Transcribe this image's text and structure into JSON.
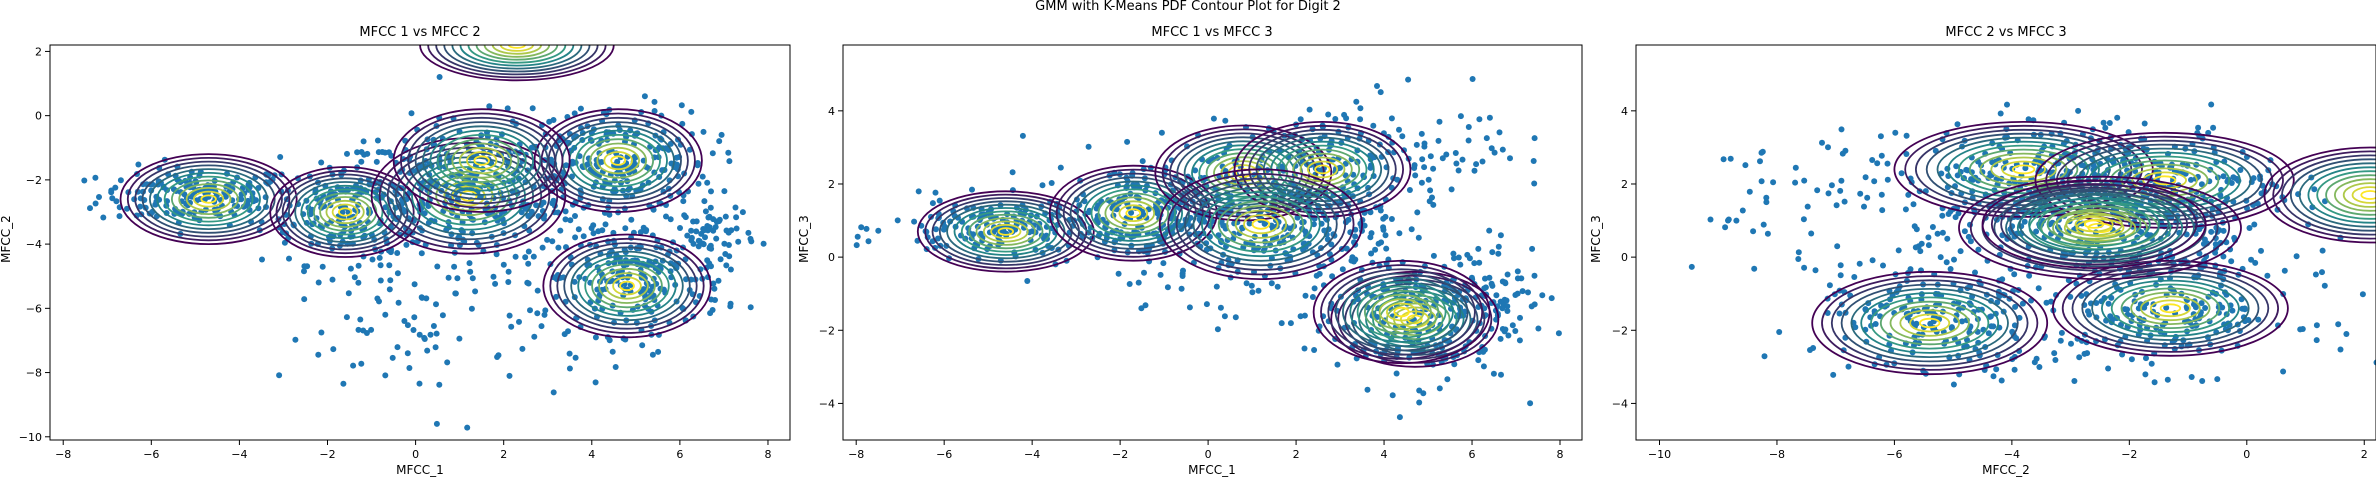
{
  "suptitle": "GMM with K-Means PDF Contour Plot for Digit 2",
  "colors": {
    "points": "#1f77b4",
    "contour_low": "#440154",
    "contour_mid": "#21918c",
    "contour_high": "#fde725",
    "axes": "#000000"
  },
  "chart_data": [
    {
      "type": "scatter",
      "title": "MFCC 1 vs MFCC 2",
      "xlabel": "MFCC_1",
      "ylabel": "MFCC_2",
      "xlim": [
        -8.3,
        8.5
      ],
      "ylim": [
        -10.1,
        2.2
      ],
      "xticks": [
        -8,
        -6,
        -4,
        -2,
        0,
        2,
        4,
        6,
        8
      ],
      "yticks": [
        -10,
        -8,
        -6,
        -4,
        -2,
        0,
        2
      ],
      "grid": false,
      "components": [
        {
          "mean": [
            -4.7,
            -2.6
          ],
          "sd": [
            2.0,
            1.4
          ]
        },
        {
          "mean": [
            -1.6,
            -3.0
          ],
          "sd": [
            1.7,
            1.4
          ]
        },
        {
          "mean": [
            1.2,
            -2.5
          ],
          "sd": [
            2.2,
            1.8
          ]
        },
        {
          "mean": [
            4.6,
            -1.4
          ],
          "sd": [
            1.9,
            1.6
          ]
        },
        {
          "mean": [
            4.8,
            -5.3
          ],
          "sd": [
            1.9,
            1.6
          ]
        },
        {
          "mean": [
            2.3,
            2.2
          ],
          "sd": [
            2.2,
            1.1
          ]
        },
        {
          "mean": [
            1.5,
            -1.4
          ],
          "sd": [
            2.0,
            1.6
          ]
        }
      ],
      "scatter_clusters": [
        {
          "center": [
            -5.0,
            -2.5
          ],
          "spread": [
            1.1,
            0.45
          ],
          "n": 170
        },
        {
          "center": [
            -1.5,
            -3.0
          ],
          "spread": [
            1.0,
            0.8
          ],
          "n": 180
        },
        {
          "center": [
            1.2,
            -2.4
          ],
          "spread": [
            1.5,
            1.1
          ],
          "n": 320
        },
        {
          "center": [
            4.5,
            -1.5
          ],
          "spread": [
            1.1,
            0.9
          ],
          "n": 220
        },
        {
          "center": [
            5.0,
            -5.0
          ],
          "spread": [
            1.0,
            0.9
          ],
          "n": 220
        },
        {
          "center": [
            6.8,
            -3.8
          ],
          "spread": [
            0.4,
            0.6
          ],
          "n": 60
        },
        {
          "center": [
            0.5,
            -6.5
          ],
          "spread": [
            1.8,
            1.3
          ],
          "n": 90
        }
      ]
    },
    {
      "type": "scatter",
      "title": "MFCC 1 vs MFCC 3",
      "xlabel": "MFCC_1",
      "ylabel": "MFCC_3",
      "xlim": [
        -8.3,
        8.5
      ],
      "ylim": [
        -5.0,
        5.8
      ],
      "xticks": [
        -8,
        -6,
        -4,
        -2,
        0,
        2,
        4,
        6,
        8
      ],
      "yticks": [
        -4,
        -2,
        0,
        2,
        4
      ],
      "grid": false,
      "components": [
        {
          "mean": [
            -4.6,
            0.7
          ],
          "sd": [
            2.0,
            1.1
          ]
        },
        {
          "mean": [
            -1.7,
            1.2
          ],
          "sd": [
            1.9,
            1.3
          ]
        },
        {
          "mean": [
            0.8,
            2.3
          ],
          "sd": [
            2.0,
            1.3
          ]
        },
        {
          "mean": [
            2.6,
            2.4
          ],
          "sd": [
            2.0,
            1.3
          ]
        },
        {
          "mean": [
            1.2,
            0.9
          ],
          "sd": [
            2.3,
            1.5
          ]
        },
        {
          "mean": [
            4.7,
            -1.7
          ],
          "sd": [
            1.9,
            1.3
          ]
        },
        {
          "mean": [
            4.4,
            -1.5
          ],
          "sd": [
            2.0,
            1.4
          ]
        }
      ],
      "scatter_clusters": [
        {
          "center": [
            -4.8,
            0.8
          ],
          "spread": [
            1.2,
            0.4
          ],
          "n": 160
        },
        {
          "center": [
            -1.6,
            1.2
          ],
          "spread": [
            1.1,
            0.7
          ],
          "n": 180
        },
        {
          "center": [
            1.2,
            1.0
          ],
          "spread": [
            1.6,
            1.1
          ],
          "n": 320
        },
        {
          "center": [
            2.8,
            2.4
          ],
          "spread": [
            1.1,
            0.9
          ],
          "n": 160
        },
        {
          "center": [
            4.6,
            -1.7
          ],
          "spread": [
            1.2,
            0.9
          ],
          "n": 240
        },
        {
          "center": [
            5.5,
            3.2
          ],
          "spread": [
            0.8,
            0.7
          ],
          "n": 40
        },
        {
          "center": [
            6.5,
            -0.8
          ],
          "spread": [
            0.6,
            0.7
          ],
          "n": 60
        }
      ]
    },
    {
      "type": "scatter",
      "title": "MFCC 2 vs MFCC 3",
      "xlabel": "MFCC_2",
      "ylabel": "MFCC_3",
      "xlim": [
        -10.4,
        2.2
      ],
      "ylim": [
        -5.0,
        5.8
      ],
      "xticks": [
        -10,
        -8,
        -6,
        -4,
        -2,
        0,
        2
      ],
      "yticks": [
        -4,
        -2,
        0,
        2,
        4
      ],
      "grid": false,
      "components": [
        {
          "mean": [
            -3.8,
            2.4
          ],
          "sd": [
            2.2,
            1.3
          ]
        },
        {
          "mean": [
            -1.4,
            2.1
          ],
          "sd": [
            2.2,
            1.3
          ]
        },
        {
          "mean": [
            -5.4,
            -1.8
          ],
          "sd": [
            2.0,
            1.4
          ]
        },
        {
          "mean": [
            -1.3,
            -1.4
          ],
          "sd": [
            2.0,
            1.3
          ]
        },
        {
          "mean": [
            -2.5,
            0.8
          ],
          "sd": [
            2.4,
            1.4
          ]
        },
        {
          "mean": [
            -2.6,
            0.9
          ],
          "sd": [
            1.9,
            1.2
          ]
        },
        {
          "mean": [
            2.1,
            1.7
          ],
          "sd": [
            1.8,
            1.3
          ]
        }
      ],
      "scatter_clusters": [
        {
          "center": [
            -3.6,
            2.2
          ],
          "spread": [
            1.1,
            0.8
          ],
          "n": 200
        },
        {
          "center": [
            -1.5,
            2.0
          ],
          "spread": [
            1.1,
            0.8
          ],
          "n": 180
        },
        {
          "center": [
            -5.2,
            -1.8
          ],
          "spread": [
            1.1,
            0.8
          ],
          "n": 200
        },
        {
          "center": [
            -1.3,
            -1.5
          ],
          "spread": [
            1.1,
            0.8
          ],
          "n": 200
        },
        {
          "center": [
            -2.5,
            0.8
          ],
          "spread": [
            1.6,
            1.1
          ],
          "n": 280
        },
        {
          "center": [
            -7.5,
            1.5
          ],
          "spread": [
            1.0,
            1.0
          ],
          "n": 60
        }
      ]
    }
  ]
}
